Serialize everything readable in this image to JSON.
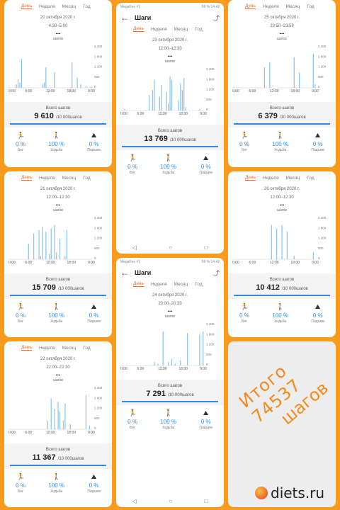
{
  "common": {
    "title": "Шаги",
    "tabs": [
      "День",
      "Неделя",
      "Месяц",
      "Год"
    ],
    "unit": "шагов",
    "dash": "--",
    "total_label": "Всего шагов",
    "goal": "/10 000шагов",
    "stats": [
      {
        "name": "Бег",
        "value": "0 %",
        "icon": "running-icon"
      },
      {
        "name": "Ходьба",
        "value": "100 %",
        "icon": "walking-icon"
      },
      {
        "name": "Подъем",
        "value": "0 %",
        "icon": "climbing-icon"
      }
    ],
    "y_ticks": [
      "2 400",
      "1 800",
      "1 200",
      "600",
      "0"
    ],
    "x_ticks": [
      "0:00",
      "6:00",
      "12:00",
      "18:00",
      "0:00"
    ],
    "status_left": "MegaFon #1",
    "status_right": "59 % 14:42",
    "nav": [
      "◁",
      "○",
      "□"
    ]
  },
  "panels": [
    {
      "date": "20 октября 2020 г.",
      "range": "4:30–5:00",
      "total": "9 610",
      "chart_data": {
        "type": "bar",
        "values": [
          0,
          0,
          0,
          0,
          200,
          500,
          300,
          1700,
          0,
          0,
          0,
          0,
          0,
          0,
          0,
          0,
          0,
          0,
          0,
          200,
          300,
          1200,
          0,
          0,
          0,
          0,
          900,
          0,
          0,
          0,
          0,
          0,
          0,
          0,
          0,
          0,
          1500,
          0,
          0,
          600,
          0,
          200,
          0,
          0,
          100,
          0,
          0,
          100
        ]
      }
    },
    {
      "date": "23 октября 2020 г.",
      "range": "12:00–12:30",
      "total": "13 769",
      "chart_data": {
        "type": "bar",
        "values": [
          0,
          0,
          100,
          0,
          0,
          0,
          0,
          0,
          0,
          0,
          0,
          0,
          0,
          0,
          0,
          0,
          900,
          0,
          1200,
          1800,
          0,
          0,
          800,
          1500,
          0,
          0,
          1100,
          400,
          2000,
          1800,
          0,
          0,
          0,
          600,
          1600,
          1200,
          1900,
          200,
          0,
          0,
          0,
          0,
          0,
          0,
          0,
          100,
          0,
          0
        ]
      }
    },
    {
      "date": "25 октября 2020 г.",
      "range": "23:50–23:59",
      "total": "6 379",
      "chart_data": {
        "type": "bar",
        "values": [
          0,
          0,
          0,
          0,
          0,
          0,
          0,
          0,
          0,
          0,
          0,
          0,
          0,
          0,
          0,
          0,
          0,
          0,
          1200,
          0,
          0,
          1500,
          0,
          0,
          0,
          0,
          0,
          0,
          0,
          0,
          0,
          0,
          0,
          0,
          0,
          1800,
          0,
          0,
          900,
          0,
          0,
          0,
          0,
          0,
          0,
          0,
          2000,
          200
        ]
      }
    },
    {
      "date": "21 октября 2020 г.",
      "range": "12:00–12:30",
      "total": "15 709",
      "chart_data": {
        "type": "bar",
        "values": [
          0,
          0,
          0,
          0,
          0,
          0,
          0,
          0,
          0,
          0,
          0,
          900,
          0,
          0,
          1500,
          0,
          0,
          1700,
          200,
          1900,
          0,
          1600,
          0,
          300,
          1800,
          0,
          2000,
          400,
          0,
          1200,
          0,
          0,
          200,
          1700,
          0,
          0,
          0,
          0,
          0,
          0,
          0,
          0,
          0,
          0,
          0,
          0,
          0,
          0
        ]
      }
    },
    {
      "date": "26 октября 2020 г.",
      "range": "12:00–12:30",
      "total": "10 412",
      "chart_data": {
        "type": "bar",
        "values": [
          0,
          0,
          0,
          0,
          0,
          0,
          0,
          0,
          0,
          0,
          0,
          0,
          0,
          0,
          0,
          0,
          0,
          0,
          0,
          0,
          0,
          0,
          2000,
          0,
          0,
          1800,
          0,
          0,
          2000,
          0,
          0,
          1600,
          0,
          0,
          0,
          200,
          0,
          0,
          0,
          0,
          0,
          0,
          0,
          0,
          0,
          0,
          400,
          0
        ]
      }
    },
    {
      "date": "24 октября 2020 г.",
      "range": "20:00–20:30",
      "total": "7 291",
      "chart_data": {
        "type": "bar",
        "values": [
          0,
          0,
          0,
          0,
          0,
          0,
          0,
          0,
          0,
          0,
          0,
          0,
          0,
          0,
          0,
          0,
          0,
          0,
          0,
          200,
          0,
          100,
          0,
          0,
          2000,
          0,
          0,
          200,
          0,
          400,
          0,
          100,
          0,
          0,
          300,
          0,
          0,
          0,
          1900,
          0,
          0,
          0,
          0,
          0,
          0,
          1800,
          0,
          2000
        ]
      }
    },
    {
      "date": "22 октября 2020 г.",
      "range": "22:00–22:30",
      "total": "11 367",
      "chart_data": {
        "type": "bar",
        "values": [
          0,
          0,
          0,
          0,
          0,
          0,
          0,
          0,
          0,
          0,
          0,
          0,
          0,
          0,
          0,
          0,
          0,
          0,
          0,
          0,
          0,
          0,
          500,
          0,
          1800,
          0,
          1200,
          0,
          1600,
          1000,
          0,
          500,
          1500,
          0,
          0,
          300,
          0,
          0,
          0,
          0,
          0,
          0,
          0,
          0,
          2000,
          0,
          200,
          0
        ]
      }
    }
  ],
  "caption": {
    "line1": "Итого 74537",
    "line2": "шагов"
  },
  "brand": "diets.ru",
  "colors": {
    "accent": "#f06a28",
    "bar": "#8cc4ee",
    "progress": "#2f8be6",
    "background": "#f89a1c"
  }
}
